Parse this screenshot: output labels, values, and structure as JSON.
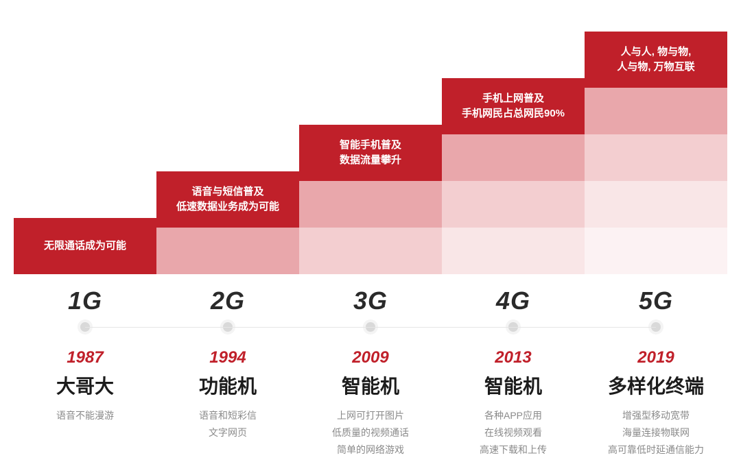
{
  "chart": {
    "type": "infographic-staircase",
    "background_color": "#ffffff",
    "header_text_color": "#ffffff",
    "header_fontsize": 15,
    "gen_label_color": "#2a2a2a",
    "gen_label_fontsize": 36,
    "year_color": "#c0202a",
    "year_fontsize": 24,
    "device_color": "#1c1c1c",
    "device_fontsize": 28,
    "feature_color": "#8a8a8a",
    "feature_fontsize": 14,
    "timeline_dot_color": "#d9d9d9",
    "timeline_dot_ring": "#f4f4f4",
    "timeline_line_color": "#e5e5e5",
    "header_bg_color": "#c0202a",
    "fade_steps": [
      "#e9a7ab",
      "#f3ced0",
      "#f9e6e7",
      "#fcf2f3"
    ],
    "header_heights": [
      82,
      82,
      82,
      82,
      82
    ],
    "step_unit": 68,
    "columns": [
      {
        "gen": "1G",
        "year": "1987",
        "device": "大哥大",
        "header_lines": [
          "无限通话成为可能"
        ],
        "features": [
          "语音不能漫游"
        ]
      },
      {
        "gen": "2G",
        "year": "1994",
        "device": "功能机",
        "header_lines": [
          "语音与短信普及",
          "低速数据业务成为可能"
        ],
        "features": [
          "语音和短彩信",
          "文字网页"
        ]
      },
      {
        "gen": "3G",
        "year": "2009",
        "device": "智能机",
        "header_lines": [
          "智能手机普及",
          "数据流量攀升"
        ],
        "features": [
          "上网可打开图片",
          "低质量的视频通话",
          "简单的网络游戏"
        ]
      },
      {
        "gen": "4G",
        "year": "2013",
        "device": "智能机",
        "header_lines": [
          "手机上网普及",
          "手机网民占总网民90%"
        ],
        "features": [
          "各种APP应用",
          "在线视频观看",
          "高速下载和上传"
        ]
      },
      {
        "gen": "5G",
        "year": "2019",
        "device": "多样化终端",
        "header_lines": [
          "人与人, 物与物,",
          "人与物, 万物互联"
        ],
        "features": [
          "增强型移动宽带",
          "海量连接物联网",
          "高可靠低时延通信能力"
        ]
      }
    ]
  }
}
